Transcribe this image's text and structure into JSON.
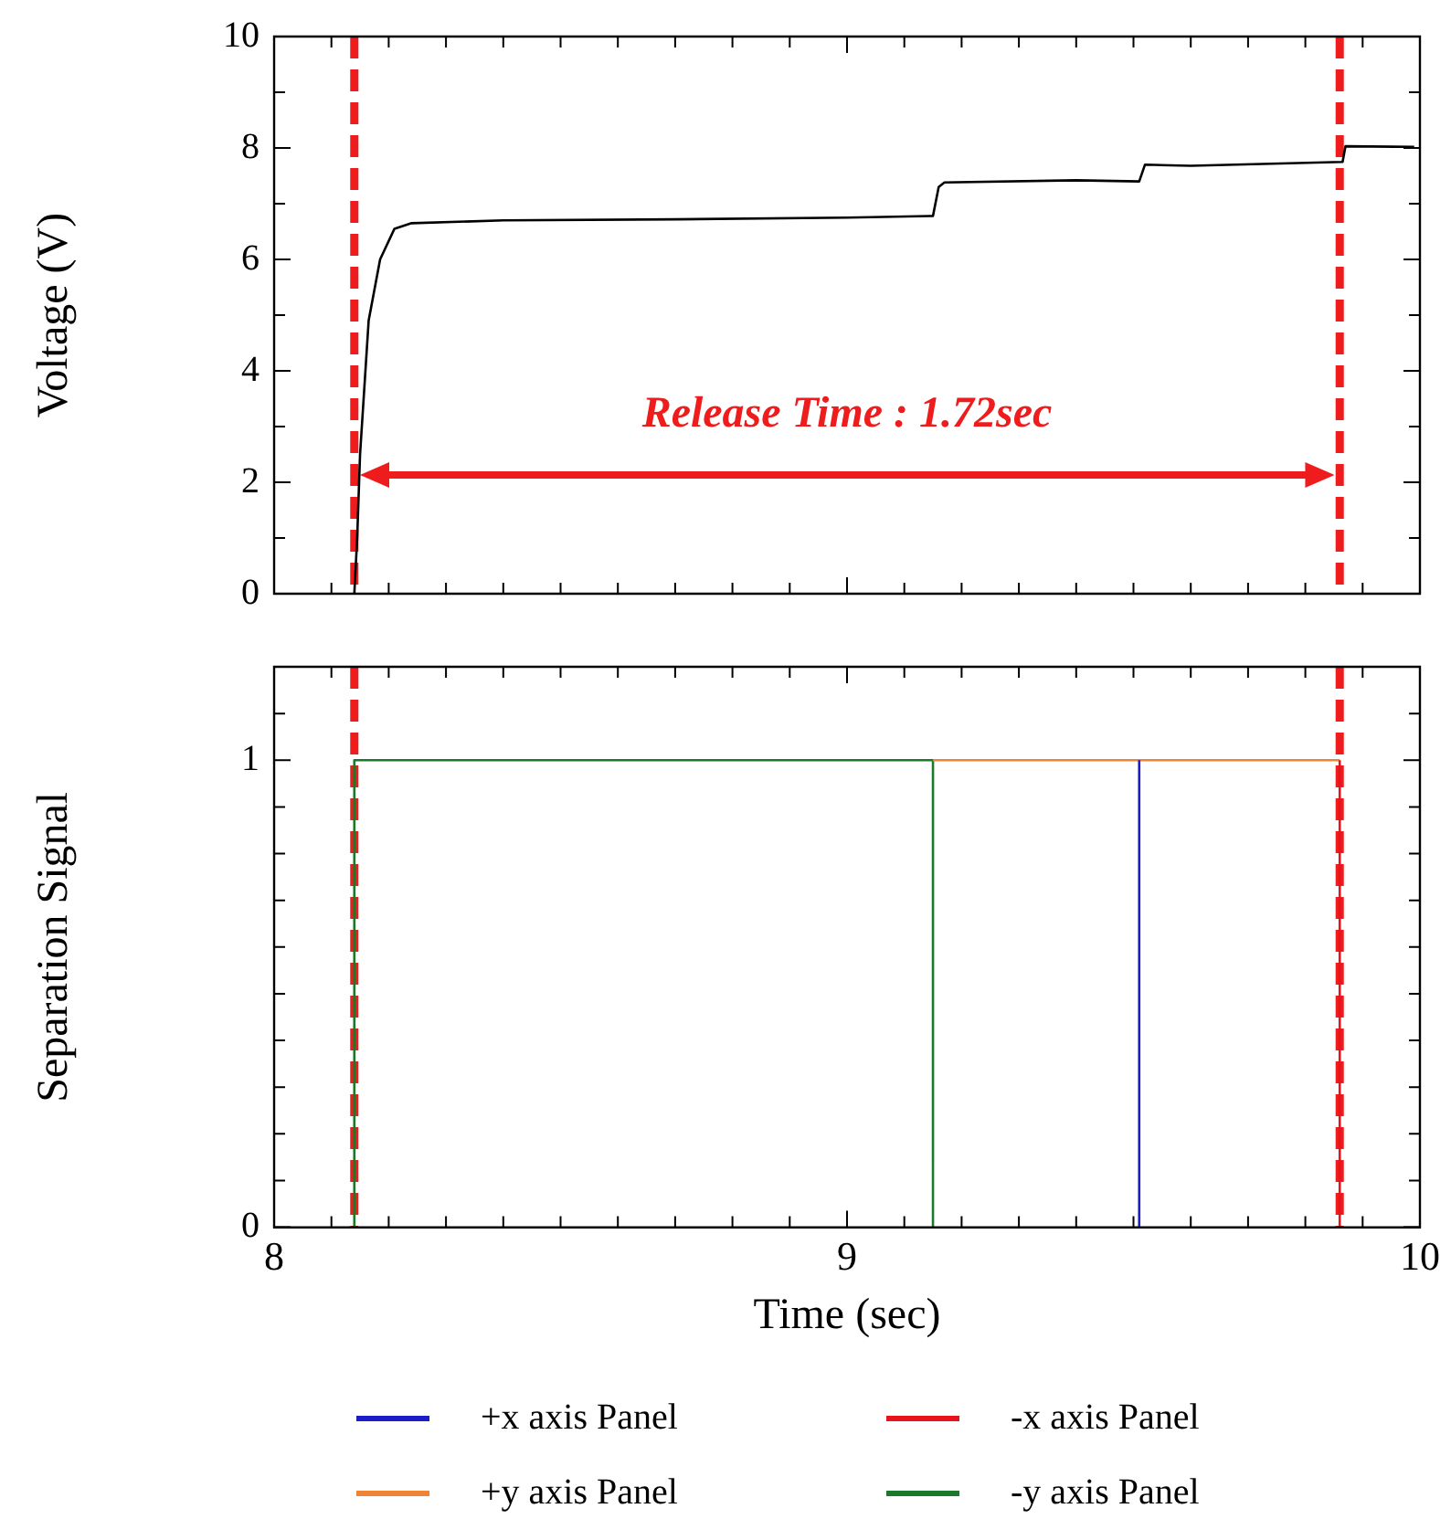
{
  "chart_data": [
    {
      "type": "line",
      "ylabel": "Voltage (V)",
      "xlim": [
        8,
        10
      ],
      "ylim": [
        0,
        10
      ],
      "xticks": [
        8,
        {
          "value": 8.1,
          "label": null
        },
        {
          "value": 8.2,
          "label": null
        },
        {
          "value": 8.3,
          "label": null
        },
        {
          "value": 8.4,
          "label": null
        },
        {
          "value": 8.5,
          "label": null
        },
        {
          "value": 8.6,
          "label": null
        },
        {
          "value": 8.7,
          "label": null
        },
        {
          "value": 8.8,
          "label": null
        },
        {
          "value": 8.9,
          "label": null
        },
        9,
        {
          "value": 9.1,
          "label": null
        },
        {
          "value": 9.2,
          "label": null
        },
        {
          "value": 9.3,
          "label": null
        },
        {
          "value": 9.4,
          "label": null
        },
        {
          "value": 9.5,
          "label": null
        },
        {
          "value": 9.6,
          "label": null
        },
        {
          "value": 9.7,
          "label": null
        },
        {
          "value": 9.8,
          "label": null
        },
        {
          "value": 9.9,
          "label": null
        },
        10
      ],
      "yticks": [
        0,
        {
          "value": 1,
          "label": null
        },
        2,
        {
          "value": 3,
          "label": null
        },
        4,
        {
          "value": 5,
          "label": null
        },
        6,
        {
          "value": 7,
          "label": null
        },
        8,
        {
          "value": 9,
          "label": null
        },
        10
      ],
      "tick_labels": "y",
      "series": [
        {
          "color": "#000000",
          "x": [
            8.14,
            8.145,
            8.15,
            8.165,
            8.185,
            8.21,
            8.24,
            8.4,
            8.7,
            9.0,
            9.15,
            9.16,
            9.17,
            9.4,
            9.51,
            9.52,
            9.6,
            9.865,
            9.87,
            9.99
          ],
          "values": [
            0,
            1.0,
            2.5,
            4.9,
            6.0,
            6.55,
            6.65,
            6.7,
            6.72,
            6.75,
            6.78,
            7.3,
            7.38,
            7.42,
            7.4,
            7.7,
            7.68,
            7.75,
            8.03,
            8.02
          ]
        }
      ],
      "ref_lines": [
        {
          "axis": "x",
          "value": 8.14,
          "color": "#ee1c1c",
          "line_style": "dashed"
        },
        {
          "axis": "x",
          "value": 9.86,
          "color": "#ee1c1c",
          "line_style": "dashed"
        }
      ],
      "annotations": [
        "Release Time : 1.72sec"
      ]
    },
    {
      "type": "line",
      "ylabel": "Separation Signal",
      "xlabel": "Time (sec)",
      "xlim": [
        8,
        10
      ],
      "ylim": [
        0,
        1.2
      ],
      "xticks": [
        8,
        {
          "value": 8.1,
          "label": null
        },
        {
          "value": 8.2,
          "label": null
        },
        {
          "value": 8.3,
          "label": null
        },
        {
          "value": 8.4,
          "label": null
        },
        {
          "value": 8.5,
          "label": null
        },
        {
          "value": 8.6,
          "label": null
        },
        {
          "value": 8.7,
          "label": null
        },
        {
          "value": 8.8,
          "label": null
        },
        {
          "value": 8.9,
          "label": null
        },
        9,
        {
          "value": 9.1,
          "label": null
        },
        {
          "value": 9.2,
          "label": null
        },
        {
          "value": 9.3,
          "label": null
        },
        {
          "value": 9.4,
          "label": null
        },
        {
          "value": 9.5,
          "label": null
        },
        {
          "value": 9.6,
          "label": null
        },
        {
          "value": 9.7,
          "label": null
        },
        {
          "value": 9.8,
          "label": null
        },
        {
          "value": 9.9,
          "label": null
        },
        10
      ],
      "yticks": [
        0,
        {
          "value": 0.1,
          "label": null
        },
        {
          "value": 0.2,
          "label": null
        },
        {
          "value": 0.3,
          "label": null
        },
        {
          "value": 0.4,
          "label": null
        },
        {
          "value": 0.5,
          "label": null
        },
        {
          "value": 0.6,
          "label": null
        },
        {
          "value": 0.7,
          "label": null
        },
        {
          "value": 0.8,
          "label": null
        },
        {
          "value": 0.9,
          "label": null
        },
        1,
        {
          "value": 1.1,
          "label": null
        },
        {
          "value": 1.2,
          "label": null
        }
      ],
      "legend": "bottom",
      "series": [
        {
          "name": "+x axis Panel",
          "color": "#1c1cc8",
          "x": [
            9.51,
            9.51
          ],
          "values": [
            0,
            1
          ]
        },
        {
          "name": "-x axis Panel",
          "color": "#e8141c",
          "x": [
            9.86,
            9.86
          ],
          "values": [
            0,
            1
          ]
        },
        {
          "name": "+y axis Panel",
          "color": "#ee8434",
          "x": [
            9.15,
            9.86
          ],
          "values": [
            1,
            1
          ]
        },
        {
          "name": "-y axis Panel",
          "color": "#1a7a2a",
          "x": [
            8.14,
            8.14,
            9.15,
            9.15
          ],
          "values": [
            0,
            1,
            1,
            0
          ]
        }
      ],
      "ref_lines": [
        {
          "axis": "x",
          "value": 8.14,
          "color": "#ee1c1c",
          "line_style": "dashed"
        },
        {
          "axis": "x",
          "value": 9.86,
          "color": "#ee1c1c",
          "line_style": "dashed"
        }
      ]
    }
  ]
}
